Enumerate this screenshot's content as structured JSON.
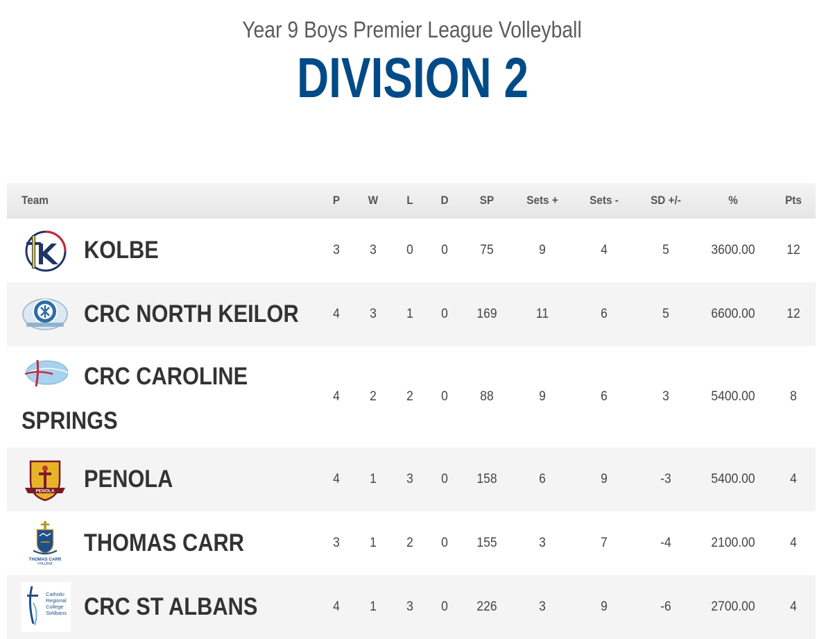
{
  "header": {
    "subtitle": "Year 9 Boys Premier League Volleyball",
    "title": "DIVISION 2"
  },
  "columns": {
    "team": "Team",
    "p": "P",
    "w": "W",
    "l": "L",
    "d": "D",
    "sp": "SP",
    "sets_plus": "Sets +",
    "sets_minus": "Sets -",
    "sd": "SD +/-",
    "pct": "%",
    "pts": "Pts"
  },
  "rows": [
    {
      "team": "KOLBE",
      "logo": "kolbe-logo",
      "p": "3",
      "w": "3",
      "l": "0",
      "d": "0",
      "sp": "75",
      "sets_plus": "9",
      "sets_minus": "4",
      "sd": "5",
      "pct": "3600.00",
      "pts": "12"
    },
    {
      "team": "CRC NORTH KEILOR",
      "logo": "crc-north-keilor-logo",
      "p": "4",
      "w": "3",
      "l": "1",
      "d": "0",
      "sp": "169",
      "sets_plus": "11",
      "sets_minus": "6",
      "sd": "5",
      "pct": "6600.00",
      "pts": "12"
    },
    {
      "team_line1": "CRC CAROLINE",
      "team_line2": "SPRINGS",
      "logo": "crc-caroline-springs-logo",
      "p": "4",
      "w": "2",
      "l": "2",
      "d": "0",
      "sp": "88",
      "sets_plus": "9",
      "sets_minus": "6",
      "sd": "3",
      "pct": "5400.00",
      "pts": "8"
    },
    {
      "team": "PENOLA",
      "logo": "penola-logo",
      "logo_text": "PENOLA",
      "p": "4",
      "w": "1",
      "l": "3",
      "d": "0",
      "sp": "158",
      "sets_plus": "6",
      "sets_minus": "9",
      "sd": "-3",
      "pct": "5400.00",
      "pts": "4"
    },
    {
      "team": "THOMAS CARR",
      "logo": "thomas-carr-logo",
      "logo_text": "THOMAS CARR",
      "logo_sub": "COLLEGE",
      "p": "3",
      "w": "1",
      "l": "2",
      "d": "0",
      "sp": "155",
      "sets_plus": "3",
      "sets_minus": "7",
      "sd": "-4",
      "pct": "2100.00",
      "pts": "4"
    },
    {
      "team": "CRC ST ALBANS",
      "logo": "crc-st-albans-logo",
      "logo_text": [
        "Catholic",
        "Regional",
        "College",
        "StAlbans"
      ],
      "p": "4",
      "w": "1",
      "l": "3",
      "d": "0",
      "sp": "226",
      "sets_plus": "3",
      "sets_minus": "9",
      "sd": "-6",
      "pct": "2700.00",
      "pts": "4"
    }
  ],
  "colors": {
    "title": "#004b87",
    "subtitle": "#5b5b5b",
    "row_alt": "#f4f4f4",
    "header_bg": "#e8e8e8"
  }
}
